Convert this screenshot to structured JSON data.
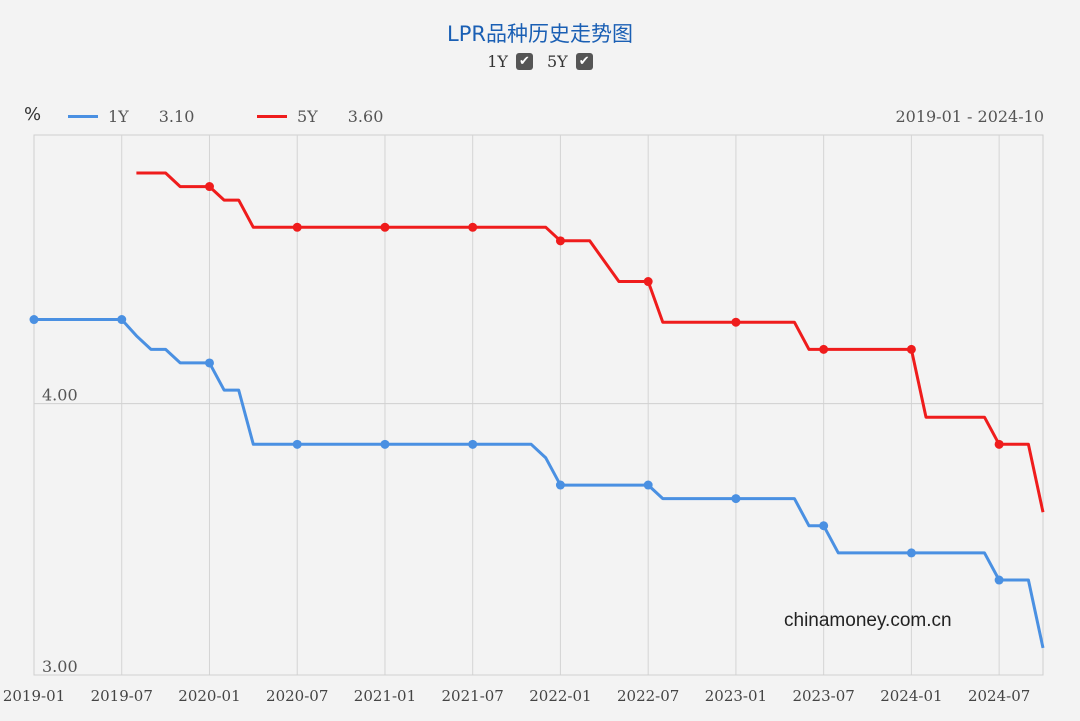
{
  "chart_data": {
    "type": "line",
    "title": "LPR品种历史走势图",
    "unit_label": "%",
    "date_range": "2019-01 - 2024-10",
    "toggles": [
      {
        "label": "1Y",
        "checked": true
      },
      {
        "label": "5Y",
        "checked": true
      }
    ],
    "x_ticks": [
      "2019-01",
      "2019-07",
      "2020-01",
      "2020-07",
      "2021-01",
      "2021-07",
      "2022-01",
      "2022-07",
      "2023-01",
      "2023-07",
      "2024-01",
      "2024-07"
    ],
    "y_ticks": [
      {
        "value": 3.0,
        "label": "3.00"
      },
      {
        "value": 4.0,
        "label": "4.00"
      }
    ],
    "ylim": [
      3.0,
      4.99
    ],
    "series": [
      {
        "name": "1Y",
        "color": "#4a90e2",
        "latest_label": "3.10",
        "points": [
          [
            "2019-01",
            4.31
          ],
          [
            "2019-07",
            4.31
          ],
          [
            "2019-08",
            4.25
          ],
          [
            "2019-09",
            4.2
          ],
          [
            "2019-10",
            4.2
          ],
          [
            "2019-11",
            4.15
          ],
          [
            "2019-12",
            4.15
          ],
          [
            "2020-01",
            4.15
          ],
          [
            "2020-02",
            4.05
          ],
          [
            "2020-03",
            4.05
          ],
          [
            "2020-04",
            3.85
          ],
          [
            "2020-07",
            3.85
          ],
          [
            "2021-01",
            3.85
          ],
          [
            "2021-07",
            3.85
          ],
          [
            "2021-11",
            3.85
          ],
          [
            "2021-12",
            3.8
          ],
          [
            "2022-01",
            3.7
          ],
          [
            "2022-07",
            3.7
          ],
          [
            "2022-08",
            3.65
          ],
          [
            "2023-01",
            3.65
          ],
          [
            "2023-05",
            3.65
          ],
          [
            "2023-06",
            3.55
          ],
          [
            "2023-07",
            3.55
          ],
          [
            "2023-08",
            3.45
          ],
          [
            "2024-01",
            3.45
          ],
          [
            "2024-06",
            3.45
          ],
          [
            "2024-07",
            3.35
          ],
          [
            "2024-09",
            3.35
          ],
          [
            "2024-10",
            3.1
          ]
        ],
        "markers": [
          "2019-01",
          "2019-07",
          "2020-01",
          "2020-07",
          "2021-01",
          "2021-07",
          "2022-01",
          "2022-07",
          "2023-01",
          "2023-07",
          "2024-01",
          "2024-07"
        ]
      },
      {
        "name": "5Y",
        "color": "#ef1c1c",
        "latest_label": "3.60",
        "points": [
          [
            "2019-08",
            4.85
          ],
          [
            "2019-10",
            4.85
          ],
          [
            "2019-11",
            4.8
          ],
          [
            "2020-01",
            4.8
          ],
          [
            "2020-02",
            4.75
          ],
          [
            "2020-03",
            4.75
          ],
          [
            "2020-04",
            4.65
          ],
          [
            "2020-07",
            4.65
          ],
          [
            "2021-01",
            4.65
          ],
          [
            "2021-07",
            4.65
          ],
          [
            "2021-12",
            4.65
          ],
          [
            "2022-01",
            4.6
          ],
          [
            "2022-03",
            4.6
          ],
          [
            "2022-05",
            4.45
          ],
          [
            "2022-07",
            4.45
          ],
          [
            "2022-08",
            4.3
          ],
          [
            "2023-01",
            4.3
          ],
          [
            "2023-05",
            4.3
          ],
          [
            "2023-06",
            4.2
          ],
          [
            "2023-07",
            4.2
          ],
          [
            "2024-01",
            4.2
          ],
          [
            "2024-02",
            3.95
          ],
          [
            "2024-06",
            3.95
          ],
          [
            "2024-07",
            3.85
          ],
          [
            "2024-09",
            3.85
          ],
          [
            "2024-10",
            3.6
          ]
        ],
        "markers": [
          "2020-01",
          "2020-07",
          "2021-01",
          "2021-07",
          "2022-01",
          "2022-07",
          "2023-01",
          "2023-07",
          "2024-01",
          "2024-07"
        ]
      }
    ]
  },
  "watermark": "chinamoney.com.cn"
}
